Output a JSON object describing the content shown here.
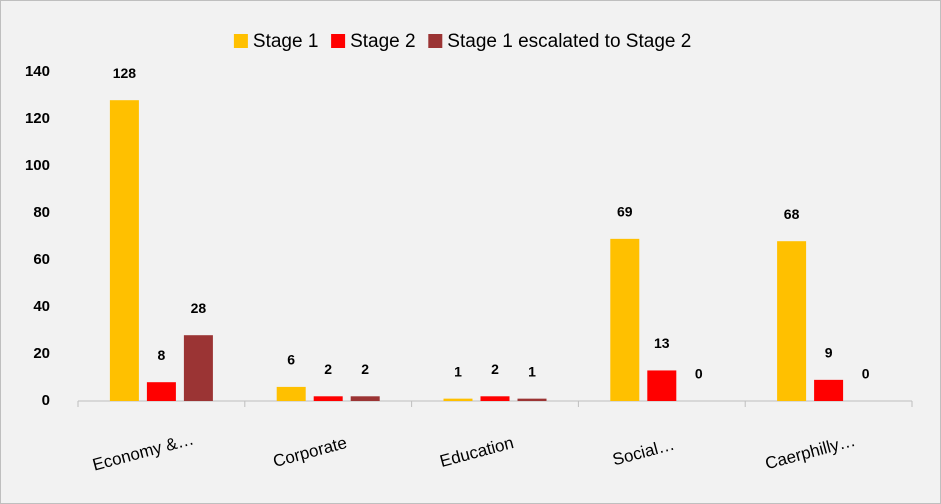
{
  "chart_data": {
    "type": "bar",
    "categories": [
      "Economy &…",
      "Corporate",
      "Education",
      "Social…",
      "Caerphilly…"
    ],
    "series": [
      {
        "name": "Stage 1",
        "color": "#ffc000",
        "values": [
          128,
          6,
          1,
          69,
          68
        ]
      },
      {
        "name": "Stage 2",
        "color": "#ff0000",
        "values": [
          8,
          2,
          2,
          13,
          9
        ]
      },
      {
        "name": "Stage 1 escalated to Stage 2",
        "color": "#9b3434",
        "values": [
          28,
          2,
          1,
          0,
          0
        ]
      }
    ],
    "ylim": [
      0,
      140
    ],
    "yticks": [
      0,
      20,
      40,
      60,
      80,
      100,
      120,
      140
    ],
    "grid": false,
    "legend": "top"
  }
}
